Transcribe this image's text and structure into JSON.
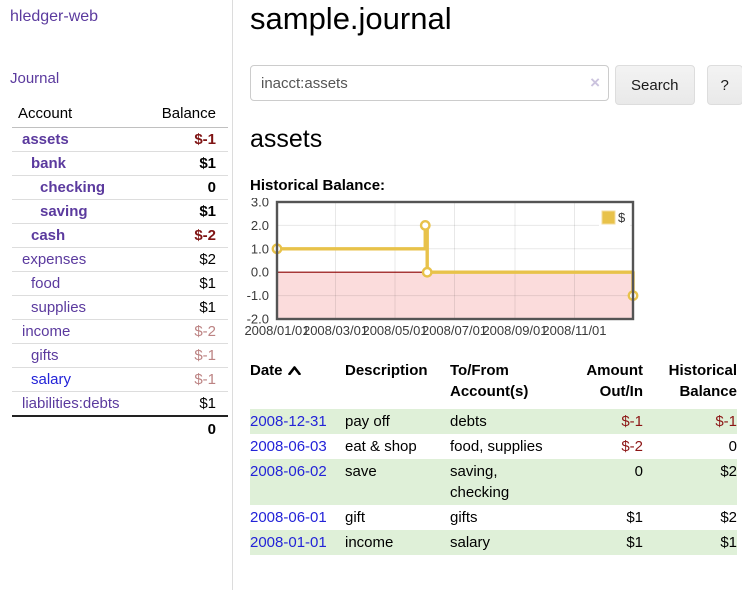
{
  "app": {
    "title": "hledger-web"
  },
  "sidebar": {
    "journal_link": "Journal",
    "accounts_table": {
      "col_account": "Account",
      "col_balance": "Balance",
      "rows": [
        {
          "name": "assets",
          "indent": 0,
          "bold": true,
          "link": "purple",
          "balance": "$-1",
          "balance_style": "neg"
        },
        {
          "name": "bank",
          "indent": 1,
          "bold": true,
          "link": "purple",
          "balance": "$1",
          "balance_style": "pos"
        },
        {
          "name": "checking",
          "indent": 2,
          "bold": true,
          "link": "purple",
          "balance": "0",
          "balance_style": "pos"
        },
        {
          "name": "saving",
          "indent": 2,
          "bold": true,
          "link": "purple",
          "balance": "$1",
          "balance_style": "pos"
        },
        {
          "name": "cash",
          "indent": 1,
          "bold": true,
          "link": "purple",
          "balance": "$-2",
          "balance_style": "neg"
        },
        {
          "name": "expenses",
          "indent": 0,
          "bold": false,
          "link": "purple",
          "balance": "$2",
          "balance_style": "pos"
        },
        {
          "name": "food",
          "indent": 1,
          "bold": false,
          "link": "purple",
          "balance": "$1",
          "balance_style": "pos"
        },
        {
          "name": "supplies",
          "indent": 1,
          "bold": false,
          "link": "purple",
          "balance": "$1",
          "balance_style": "pos"
        },
        {
          "name": "income",
          "indent": 0,
          "bold": false,
          "link": "purple",
          "balance": "$-2",
          "balance_style": "neg-light"
        },
        {
          "name": "gifts",
          "indent": 1,
          "bold": false,
          "link": "purple",
          "balance": "$-1",
          "balance_style": "neg-light"
        },
        {
          "name": "salary",
          "indent": 1,
          "bold": false,
          "link": "blue",
          "balance": "$-1",
          "balance_style": "neg-light"
        },
        {
          "name": "liabilities:debts",
          "indent": 0,
          "bold": false,
          "link": "purple",
          "balance": "$1",
          "balance_style": "pos"
        }
      ],
      "total": "0"
    }
  },
  "header": {
    "title": "sample.journal"
  },
  "search": {
    "value": "inacct:assets",
    "clear_icon": "×",
    "button_label": "Search",
    "help_label": "?"
  },
  "account_page": {
    "heading": "assets",
    "chart_label": "Historical Balance:"
  },
  "chart_data": {
    "type": "line",
    "title": "Historical Balance",
    "legend": {
      "label": "$",
      "position": "top-right"
    },
    "x_axis": {
      "start": "2008-01-01",
      "end": "2008-12-31",
      "range_days": [
        0,
        365
      ],
      "ticks": [
        {
          "day": 0,
          "label": "2008/01/01"
        },
        {
          "day": 60,
          "label": "2008/03/01"
        },
        {
          "day": 121,
          "label": "2008/05/01"
        },
        {
          "day": 182,
          "label": "2008/07/01"
        },
        {
          "day": 244,
          "label": "2008/09/01"
        },
        {
          "day": 305,
          "label": "2008/11/01"
        }
      ]
    },
    "y_axis": {
      "range": [
        -2,
        3
      ],
      "ticks": [
        {
          "value": 3,
          "label": "3.0"
        },
        {
          "value": 2,
          "label": "2.0"
        },
        {
          "value": 1,
          "label": "1.0"
        },
        {
          "value": 0,
          "label": "0.0"
        },
        {
          "value": -1,
          "label": "-1.0"
        },
        {
          "value": -2,
          "label": "-2.0"
        }
      ]
    },
    "series": [
      {
        "name": "$",
        "type": "step-line",
        "color": "#e8c24a",
        "points": [
          {
            "date": "2008-01-01",
            "day": 0,
            "value": 1
          },
          {
            "date": "2008-06-01",
            "day": 152,
            "value": 2
          },
          {
            "date": "2008-06-03",
            "day": 154,
            "value": 0
          },
          {
            "date": "2008-12-31",
            "day": 365,
            "value": -1
          }
        ]
      }
    ],
    "styles": {
      "negative_region_color": "#fbdcdc",
      "zero_line_color": "#8b0000",
      "grid_alpha": 0.09,
      "border_color": "#545454",
      "marker_fill": "#ffffff",
      "tick_label_color": "#3a3a3a"
    }
  },
  "register_table": {
    "columns": {
      "date": "Date",
      "description": "Description",
      "tofrom": "To/From Account(s)",
      "amount": "Amount Out/In",
      "balance": "Historical Balance"
    },
    "rows": [
      {
        "date": "2008-12-31",
        "description": "pay off",
        "accounts": "debts",
        "amount": "$-1",
        "amount_style": "neg",
        "balance": "$-1",
        "balance_style": "neg"
      },
      {
        "date": "2008-06-03",
        "description": "eat & shop",
        "accounts": "food, supplies",
        "amount": "$-2",
        "amount_style": "neg",
        "balance": "0",
        "balance_style": "pos"
      },
      {
        "date": "2008-06-02",
        "description": "save",
        "accounts": "saving, checking",
        "amount": "0",
        "amount_style": "pos",
        "balance": "$2",
        "balance_style": "pos"
      },
      {
        "date": "2008-06-01",
        "description": "gift",
        "accounts": "gifts",
        "amount": "$1",
        "amount_style": "pos",
        "balance": "$2",
        "balance_style": "pos"
      },
      {
        "date": "2008-01-01",
        "description": "income",
        "accounts": "salary",
        "amount": "$1",
        "amount_style": "pos",
        "balance": "$1",
        "balance_style": "pos"
      }
    ]
  }
}
